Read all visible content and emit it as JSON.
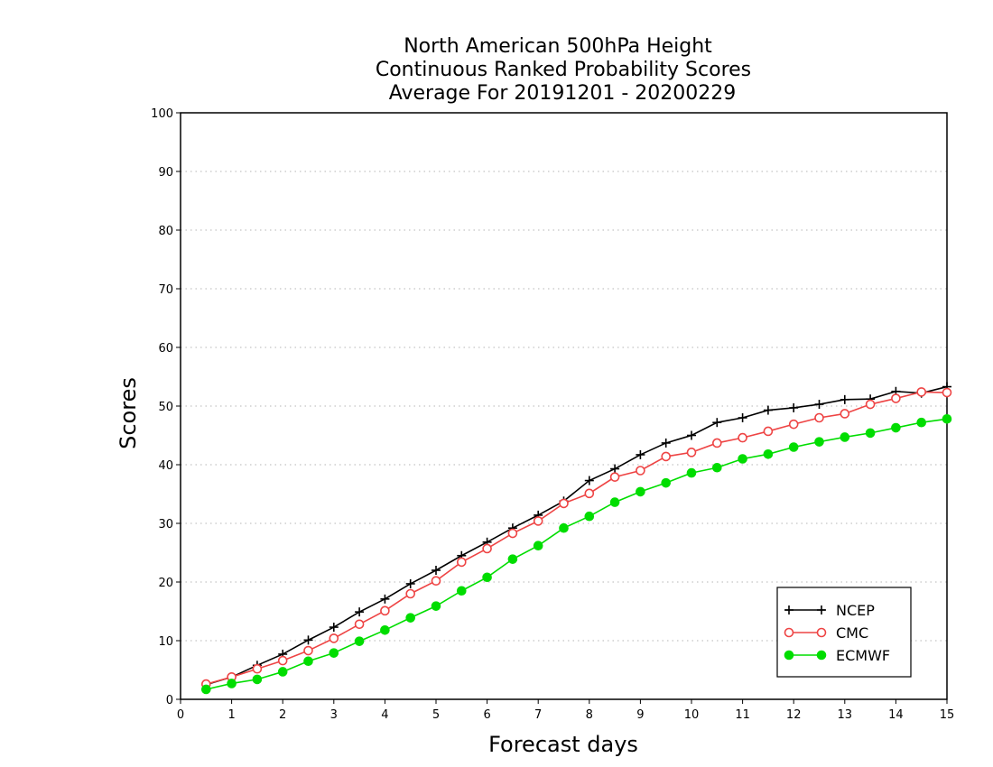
{
  "chart_data": {
    "type": "line",
    "title_lines": [
      "North American 500hPa Height",
      "Continuous Ranked Probability Scores",
      "Average For 20191201 - 20200229"
    ],
    "xlabel": "Forecast days",
    "ylabel": "Scores",
    "xlim": [
      0,
      15
    ],
    "ylim": [
      0,
      100
    ],
    "xticks": [
      0,
      1,
      2,
      3,
      4,
      5,
      6,
      7,
      8,
      9,
      10,
      11,
      12,
      13,
      14,
      15
    ],
    "yticks": [
      0,
      10,
      20,
      30,
      40,
      50,
      60,
      70,
      80,
      90,
      100
    ],
    "grid": "horizontal dotted",
    "legend_position": "bottom-right",
    "x": [
      0.5,
      1,
      1.5,
      2,
      2.5,
      3,
      3.5,
      4,
      4.5,
      5,
      5.5,
      6,
      6.5,
      7,
      7.5,
      8,
      8.5,
      9,
      9.5,
      10,
      10.5,
      11,
      11.5,
      12,
      12.5,
      13,
      13.5,
      14,
      14.5,
      15
    ],
    "series": [
      {
        "name": "NCEP",
        "color": "#000000",
        "marker": "plus",
        "values": [
          2.5,
          3.8,
          5.8,
          7.7,
          10.1,
          12.3,
          14.9,
          17.1,
          19.7,
          22.0,
          24.5,
          26.8,
          29.2,
          31.4,
          33.8,
          37.3,
          39.3,
          41.7,
          43.7,
          45.0,
          47.2,
          48.0,
          49.3,
          49.7,
          50.3,
          51.1,
          51.2,
          52.5,
          52.2,
          53.3
        ]
      },
      {
        "name": "CMC",
        "color": "#ee4444",
        "marker": "open-circle",
        "values": [
          2.6,
          3.8,
          5.2,
          6.6,
          8.3,
          10.4,
          12.8,
          15.1,
          18.0,
          20.2,
          23.4,
          25.7,
          28.3,
          30.4,
          33.4,
          35.1,
          37.9,
          39.0,
          41.4,
          42.1,
          43.7,
          44.6,
          45.7,
          46.9,
          48.0,
          48.7,
          50.3,
          51.3,
          52.4,
          52.3
        ]
      },
      {
        "name": "ECMWF",
        "color": "#00dd00",
        "marker": "filled-circle",
        "values": [
          1.7,
          2.7,
          3.4,
          4.7,
          6.5,
          7.9,
          9.9,
          11.8,
          13.9,
          15.9,
          18.5,
          20.8,
          23.9,
          26.2,
          29.2,
          31.2,
          33.6,
          35.4,
          36.9,
          38.6,
          39.5,
          41.0,
          41.8,
          43.0,
          43.9,
          44.7,
          45.4,
          46.3,
          47.2,
          47.8
        ]
      }
    ]
  }
}
